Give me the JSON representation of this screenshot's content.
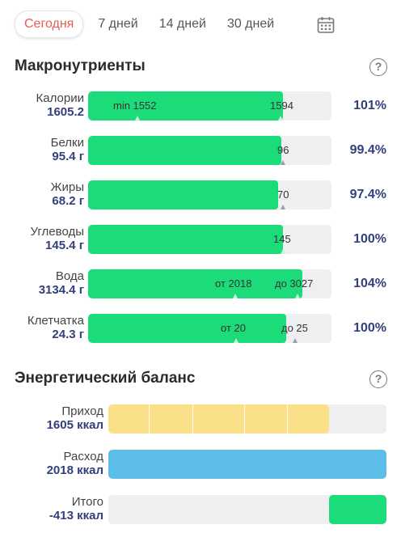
{
  "tabs": [
    {
      "label": "Сегодня",
      "active": true
    },
    {
      "label": "7 дней",
      "active": false
    },
    {
      "label": "14 дней",
      "active": false
    },
    {
      "label": "30 дней",
      "active": false
    }
  ],
  "calendar_icon": "calendar-icon",
  "help_icon_glyph": "?",
  "macros": {
    "title": "Макронутриенты",
    "rows": [
      {
        "label": "Калории",
        "value": "1605.2",
        "percent": "101%",
        "fill": 0.8,
        "left_text": "min 1552",
        "right_text": "1594"
      },
      {
        "label": "Белки",
        "value": "95.4 г",
        "percent": "99.4%",
        "fill": 0.795,
        "left_text": "",
        "right_text": "96"
      },
      {
        "label": "Жиры",
        "value": "68.2 г",
        "percent": "97.4%",
        "fill": 0.78,
        "left_text": "",
        "right_text": "70"
      },
      {
        "label": "Углеводы",
        "value": "145.4 г",
        "percent": "100%",
        "fill": 0.8,
        "left_text": "",
        "right_text": "145"
      },
      {
        "label": "Вода",
        "value": "3134.4 г",
        "percent": "104%",
        "fill": 0.88,
        "left_text": "от 2018",
        "right_text": "до 3027"
      },
      {
        "label": "Клетчатка",
        "value": "24.3 г",
        "percent": "100%",
        "fill": 0.815,
        "left_text": "от 20",
        "right_text": "до 25"
      }
    ]
  },
  "energy": {
    "title": "Энергетический баланс",
    "rows": [
      {
        "label": "Приход",
        "value": "1605 ккал",
        "fill": 0.795,
        "color": "#fbe08a"
      },
      {
        "label": "Расход",
        "value": "2018 ккал",
        "fill": 1.0,
        "color": "#5bbde8"
      },
      {
        "label": "Итого",
        "value": "-413 ккал",
        "fill": 0.205,
        "color": "#1cdc7a"
      }
    ]
  },
  "colors": {
    "accent": "#e85a55",
    "green": "#1cdc7a",
    "value_text": "#34407a"
  }
}
